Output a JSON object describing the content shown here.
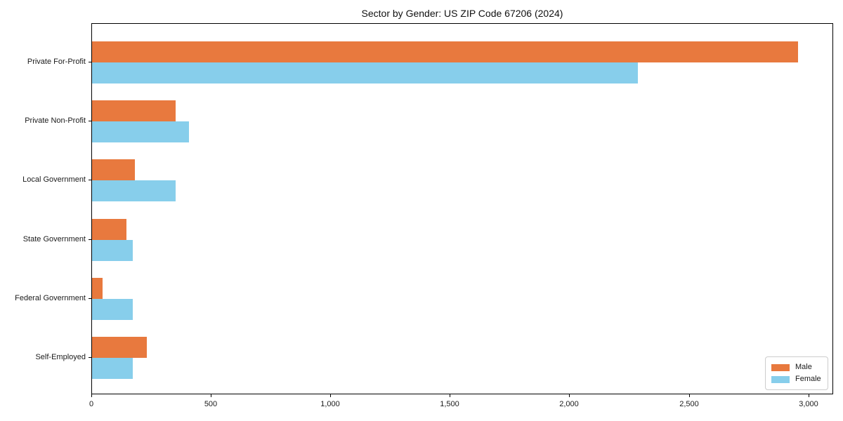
{
  "title": "Sector by Gender: US ZIP Code 67206 (2024)",
  "chart_data": {
    "type": "bar",
    "orientation": "horizontal",
    "title": "Sector by Gender: US ZIP Code 67206 (2024)",
    "categories": [
      "Private For-Profit",
      "Private Non-Profit",
      "Local Government",
      "State Government",
      "Federal Government",
      "Self-Employed"
    ],
    "series": [
      {
        "name": "Male",
        "color": "#e8793e",
        "values": [
          2955,
          350,
          180,
          145,
          45,
          230
        ]
      },
      {
        "name": "Female",
        "color": "#87ceeb",
        "values": [
          2285,
          405,
          350,
          170,
          170,
          170
        ]
      }
    ],
    "xlabel": "",
    "ylabel": "",
    "xlim": [
      0,
      3104
    ],
    "xticks": [
      0,
      500,
      1000,
      1500,
      2000,
      2500,
      3000
    ],
    "xtick_labels": [
      "0",
      "500",
      "1,000",
      "1,500",
      "2,000",
      "2,500",
      "3,000"
    ],
    "grid": false,
    "legend_position": "lower right",
    "legend_items": [
      "Male",
      "Female"
    ]
  }
}
